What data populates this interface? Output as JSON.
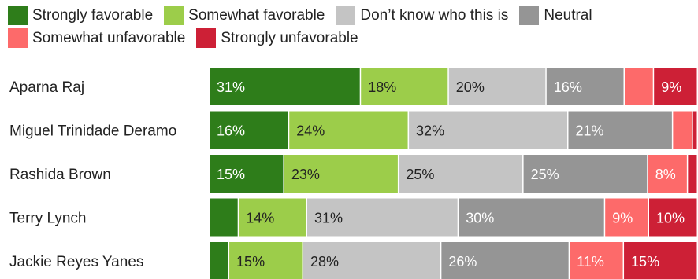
{
  "chart_data": {
    "type": "bar",
    "orientation": "horizontal",
    "stacked": true,
    "normalized": true,
    "grid": false,
    "legend_position": "top",
    "categories": [
      "Aparna Raj",
      "Miguel Trinidade Deramo",
      "Rashida Brown",
      "Terry Lynch",
      "Jackie Reyes Yanes"
    ],
    "series": [
      {
        "name": "Strongly favorable",
        "color": "#2e7d1a",
        "values": [
          31,
          16,
          15,
          6,
          4
        ]
      },
      {
        "name": "Somewhat favorable",
        "color": "#9ccd4a",
        "values": [
          18,
          24,
          23,
          14,
          15
        ]
      },
      {
        "name": "Don’t know who this is",
        "color": "#c4c4c4",
        "values": [
          20,
          32,
          25,
          31,
          28
        ]
      },
      {
        "name": "Neutral",
        "color": "#959595",
        "values": [
          16,
          21,
          25,
          30,
          26
        ]
      },
      {
        "name": "Somewhat unfavorable",
        "color": "#fd6a6a",
        "values": [
          6,
          4,
          8,
          9,
          11
        ]
      },
      {
        "name": "Strongly unfavorable",
        "color": "#cd2036",
        "values": [
          9,
          1,
          2,
          10,
          15
        ]
      }
    ],
    "data_labels": [
      [
        "31%",
        "18%",
        "20%",
        "16%",
        "",
        "9%"
      ],
      [
        "16%",
        "24%",
        "32%",
        "21%",
        "",
        ""
      ],
      [
        "15%",
        "23%",
        "25%",
        "25%",
        "8%",
        ""
      ],
      [
        "",
        "14%",
        "31%",
        "30%",
        "9%",
        "10%"
      ],
      [
        "",
        "15%",
        "28%",
        "26%",
        "11%",
        "15%"
      ]
    ],
    "label_colors": [
      "#ffffff",
      "#222222",
      "#222222",
      "#ffffff",
      "#ffffff",
      "#ffffff"
    ]
  }
}
